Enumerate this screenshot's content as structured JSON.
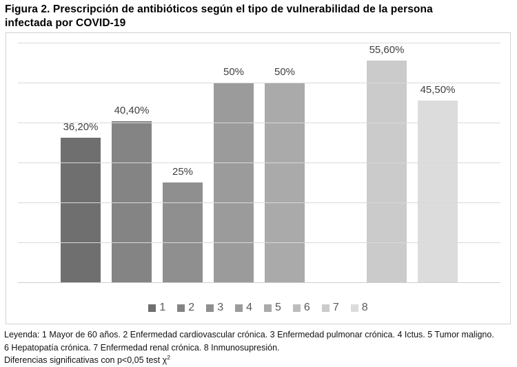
{
  "title": {
    "line1": "Figura 2. Prescripción de antibióticos según el tipo de vulnerabilidad de la persona",
    "line2": "infectada por COVID-19"
  },
  "chart_data": {
    "type": "bar",
    "title": "",
    "xlabel": "",
    "ylabel": "",
    "ylim": [
      0,
      60
    ],
    "grid_step": 10,
    "grid": true,
    "legend_position": "bottom",
    "categories": [
      "1",
      "2",
      "3",
      "4",
      "5",
      "6",
      "7",
      "8"
    ],
    "series": [
      {
        "name": "1",
        "value": 36.2,
        "label": "36,20%",
        "color": "#6f6f6f"
      },
      {
        "name": "2",
        "value": 40.4,
        "label": "40,40%",
        "color": "#848484"
      },
      {
        "name": "3",
        "value": 25.0,
        "label": "25%",
        "color": "#8f8f8f"
      },
      {
        "name": "4",
        "value": 50.0,
        "label": "50%",
        "color": "#9b9b9b"
      },
      {
        "name": "5",
        "value": 50.0,
        "label": "50%",
        "color": "#aaaaaa"
      },
      {
        "name": "6",
        "value": null,
        "label": "",
        "color": "#bcbcbc"
      },
      {
        "name": "7",
        "value": 55.6,
        "label": "55,60%",
        "color": "#cbcbcb"
      },
      {
        "name": "8",
        "value": 45.5,
        "label": "45,50%",
        "color": "#dcdcdc"
      }
    ]
  },
  "footnotes": {
    "lines": [
      "Leyenda: 1 Mayor de 60 años. 2 Enfermedad cardiovascular crónica. 3 Enfermedad pulmonar crónica. 4 Ictus. 5 Tumor maligno.",
      "6 Hepatopatía crónica. 7 Enfermedad renal crónica. 8 Inmunosupresión."
    ],
    "line3_base": "Diferencias significativas con p<0,05 test χ",
    "line3_sup": "2"
  },
  "colors": {
    "frame_border": "#d2d2d2",
    "gridline": "#d9d9d9",
    "axis_line": "#cfcfcf",
    "bar_label_text": "#3f3f3f",
    "legend_text": "#595959",
    "title_text": "#000000",
    "footnote_text": "#111111"
  }
}
